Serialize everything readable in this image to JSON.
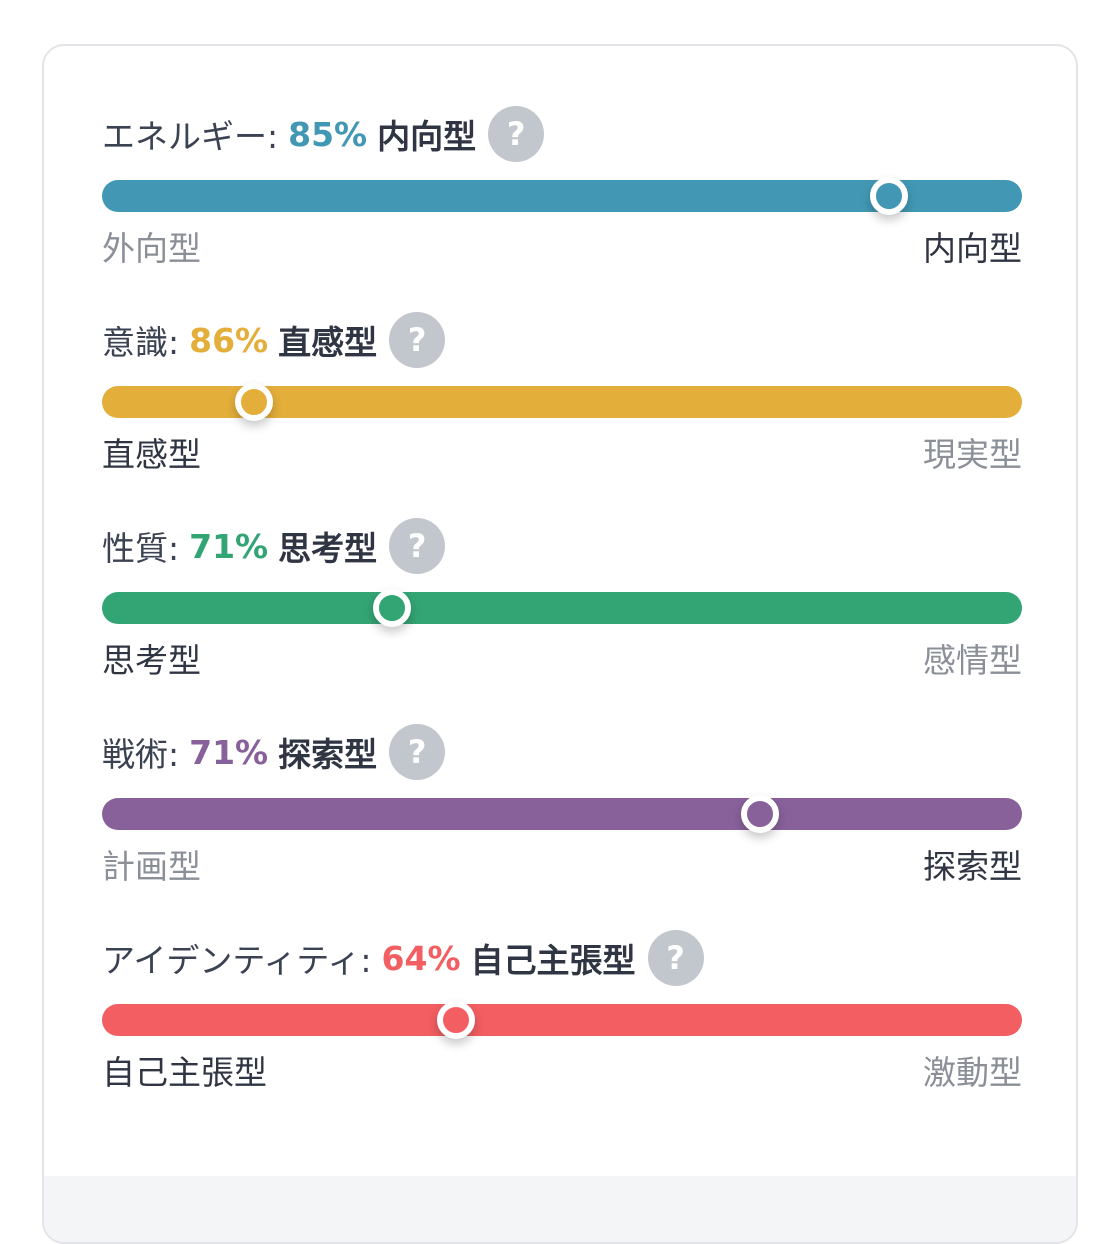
{
  "traits": [
    {
      "label": "エネルギー:",
      "percent": "85%",
      "type": "内向型",
      "help": "?",
      "color": "#4298b4",
      "position": 0.855,
      "left_pole": "外向型",
      "right_pole": "内向型",
      "active_side": "right"
    },
    {
      "label": "意識:",
      "percent": "86%",
      "type": "直感型",
      "help": "?",
      "color": "#e4ae3a",
      "position": 0.165,
      "left_pole": "直感型",
      "right_pole": "現実型",
      "active_side": "left"
    },
    {
      "label": "性質:",
      "percent": "71%",
      "type": "思考型",
      "help": "?",
      "color": "#33a474",
      "position": 0.315,
      "left_pole": "思考型",
      "right_pole": "感情型",
      "active_side": "left"
    },
    {
      "label": "戦術:",
      "percent": "71%",
      "type": "探索型",
      "help": "?",
      "color": "#88619a",
      "position": 0.715,
      "left_pole": "計画型",
      "right_pole": "探索型",
      "active_side": "right"
    },
    {
      "label": "アイデンティティ:",
      "percent": "64%",
      "type": "自己主張型",
      "help": "?",
      "color": "#f25e62",
      "position": 0.385,
      "left_pole": "自己主張型",
      "right_pole": "激動型",
      "active_side": "left"
    }
  ]
}
